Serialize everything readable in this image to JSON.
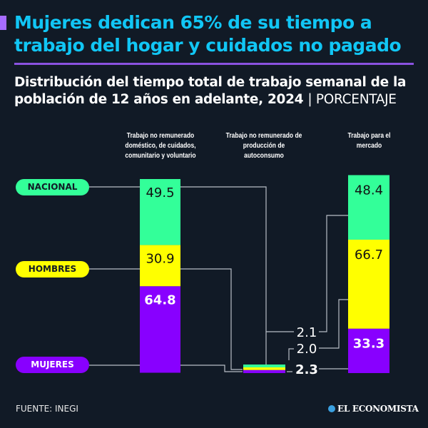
{
  "header": {
    "title": "Mujeres dedican 65% de su tiempo a trabajo del hogar y cuidados no pagado",
    "subtitle": "Distribución del tiempo total de trabajo semanal de la población de 12 años en adelante, 2024",
    "unit": "| PORCENTAJE"
  },
  "chart_data": {
    "type": "bar",
    "title": "Distribución del tiempo total de trabajo semanal de la población de 12 años en adelante, 2024",
    "ylabel": "Porcentaje",
    "categories": [
      "Trabajo no remunerado doméstico, de cuidados, comunitario y voluntario",
      "Trabajo no remunerado de producción de autoconsumo",
      "Trabajo para el mercado"
    ],
    "series": [
      {
        "name": "NACIONAL",
        "color": "#33ff99",
        "values": [
          49.5,
          2.1,
          48.4
        ]
      },
      {
        "name": "HOMBRES",
        "color": "#ffff00",
        "values": [
          30.9,
          2.0,
          66.7
        ]
      },
      {
        "name": "MUJERES",
        "color": "#8800ff",
        "values": [
          64.8,
          2.3,
          33.3
        ]
      }
    ]
  },
  "footer": {
    "source": "FUENTE: INEGI",
    "logo": "EL ECONOMISTA"
  }
}
